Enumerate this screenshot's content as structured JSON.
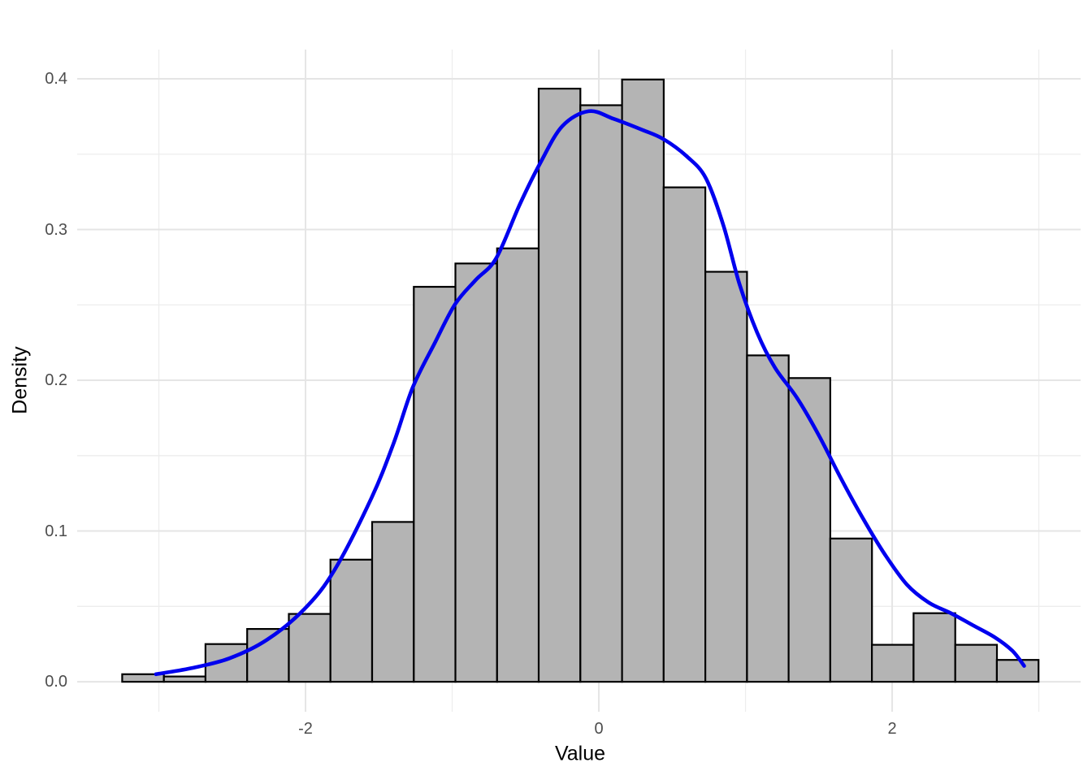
{
  "chart_data": {
    "type": "histogram",
    "title": "",
    "xlabel": "Value",
    "ylabel": "Density",
    "xlim": [
      -3.557,
      3.285
    ],
    "ylim": [
      -0.0199,
      0.4194
    ],
    "grid": "major+minor, light grey on white, no axis lines, no tick marks",
    "x_axis": {
      "major_ticks": [
        -2,
        0,
        2
      ],
      "major_labels": [
        "-2",
        "0",
        "2"
      ],
      "minor_ticks": [
        -3,
        -1,
        1,
        3
      ]
    },
    "y_axis": {
      "major_ticks": [
        0.0,
        0.1,
        0.2,
        0.3,
        0.4
      ],
      "major_labels": [
        "0.0",
        "0.1",
        "0.2",
        "0.3",
        "0.4"
      ],
      "minor_ticks": [
        0.05,
        0.15,
        0.25,
        0.35
      ]
    },
    "colors": {
      "background": "#ffffff",
      "bar_fill": "#b4b4b4",
      "bar_stroke": "#000000",
      "curve": "#0000ee",
      "grid_major": "#e5e5e5",
      "grid_minor": "#ededed",
      "tick_text": "#4d4d4d",
      "title_text": "#000000"
    },
    "histogram": {
      "bin_edges": [
        -3.25,
        -2.966,
        -2.682,
        -2.398,
        -2.114,
        -1.83,
        -1.546,
        -1.262,
        -0.978,
        -0.694,
        -0.41,
        -0.126,
        0.158,
        0.442,
        0.726,
        1.01,
        1.294,
        1.578,
        1.862,
        2.146,
        2.43,
        2.714,
        2.998
      ],
      "densities": [
        0.005,
        0.0035,
        0.025,
        0.035,
        0.045,
        0.081,
        0.106,
        0.262,
        0.2775,
        0.2875,
        0.3935,
        0.3825,
        0.3995,
        0.328,
        0.272,
        0.2165,
        0.2015,
        0.095,
        0.0245,
        0.0455,
        0.0245,
        0.0145
      ]
    },
    "density_curve": {
      "points": [
        [
          -3.02,
          0.005
        ],
        [
          -2.78,
          0.009
        ],
        [
          -2.52,
          0.0155
        ],
        [
          -2.26,
          0.028
        ],
        [
          -2.0,
          0.049
        ],
        [
          -1.8,
          0.0745
        ],
        [
          -1.55,
          0.122
        ],
        [
          -1.4,
          0.158
        ],
        [
          -1.27,
          0.195
        ],
        [
          -1.12,
          0.2245
        ],
        [
          -0.98,
          0.2505
        ],
        [
          -0.84,
          0.2665
        ],
        [
          -0.7,
          0.281
        ],
        [
          -0.54,
          0.3165
        ],
        [
          -0.4,
          0.344
        ],
        [
          -0.25,
          0.3685
        ],
        [
          -0.07,
          0.3785
        ],
        [
          0.1,
          0.3735
        ],
        [
          0.3,
          0.366
        ],
        [
          0.44,
          0.36
        ],
        [
          0.6,
          0.3485
        ],
        [
          0.73,
          0.334
        ],
        [
          0.85,
          0.3025
        ],
        [
          0.96,
          0.2635
        ],
        [
          1.08,
          0.2315
        ],
        [
          1.2,
          0.2085
        ],
        [
          1.35,
          0.1885
        ],
        [
          1.5,
          0.1635
        ],
        [
          1.65,
          0.135
        ],
        [
          1.8,
          0.1085
        ],
        [
          1.95,
          0.0845
        ],
        [
          2.1,
          0.0645
        ],
        [
          2.25,
          0.0525
        ],
        [
          2.4,
          0.0455
        ],
        [
          2.55,
          0.0375
        ],
        [
          2.7,
          0.0295
        ],
        [
          2.82,
          0.0205
        ],
        [
          2.9,
          0.0105
        ]
      ]
    }
  }
}
